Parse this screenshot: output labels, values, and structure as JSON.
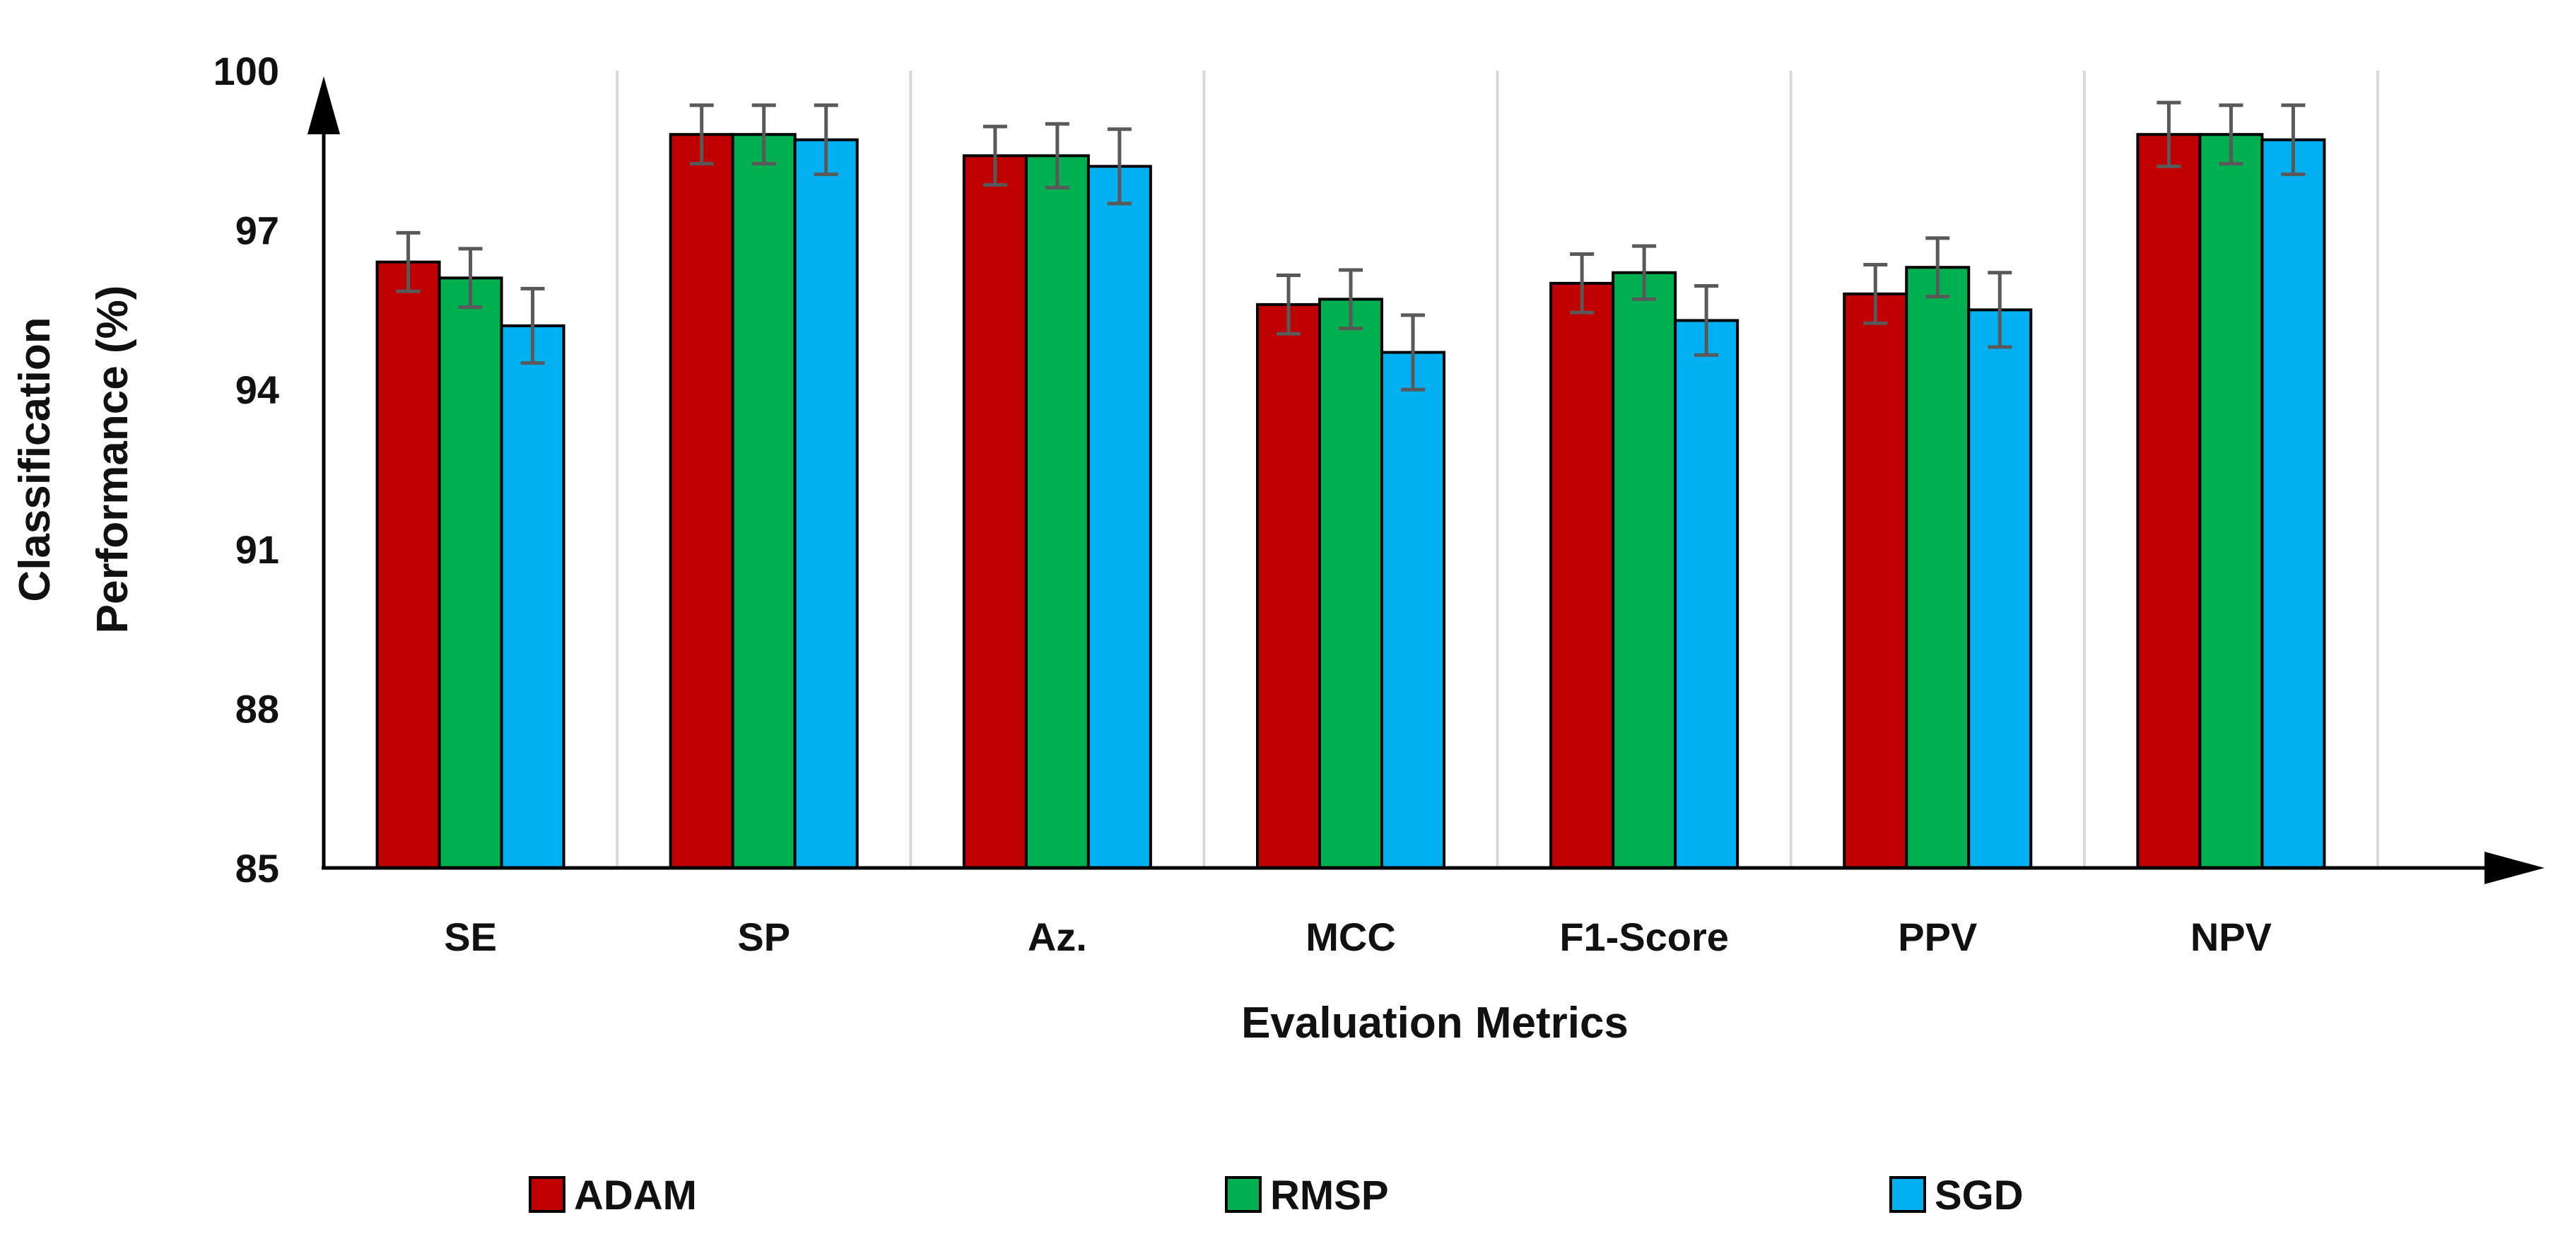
{
  "chart_data": {
    "type": "bar",
    "title": "",
    "xlabel": "Evaluation Metrics",
    "ylabel_lines": [
      "Classification",
      "Performance (%)"
    ],
    "ylim": [
      85,
      100
    ],
    "yticks": [
      "85",
      "88",
      "91",
      "94",
      "97",
      "100"
    ],
    "categories": [
      "SE",
      "SP",
      "Az.",
      "MCC",
      "F1-Score",
      "PPV",
      "NPV"
    ],
    "series": [
      {
        "name": "ADAM",
        "color": "#C00000",
        "values": [
          96.4,
          98.8,
          98.4,
          95.6,
          96.0,
          95.8,
          98.8
        ],
        "errors": [
          0.55,
          0.55,
          0.55,
          0.55,
          0.55,
          0.55,
          0.6
        ]
      },
      {
        "name": "RMSP",
        "color": "#00B050",
        "values": [
          96.1,
          98.8,
          98.4,
          95.7,
          96.2,
          96.3,
          98.8
        ],
        "errors": [
          0.55,
          0.55,
          0.6,
          0.55,
          0.5,
          0.55,
          0.55
        ]
      },
      {
        "name": "SGD",
        "color": "#00B0F0",
        "values": [
          95.2,
          98.7,
          98.2,
          94.7,
          95.3,
          95.5,
          98.7
        ],
        "errors": [
          0.7,
          0.65,
          0.7,
          0.7,
          0.65,
          0.7,
          0.65
        ]
      }
    ],
    "grid": "vertical category separators",
    "legend_position": "bottom",
    "error_bar_color": "#595959"
  }
}
